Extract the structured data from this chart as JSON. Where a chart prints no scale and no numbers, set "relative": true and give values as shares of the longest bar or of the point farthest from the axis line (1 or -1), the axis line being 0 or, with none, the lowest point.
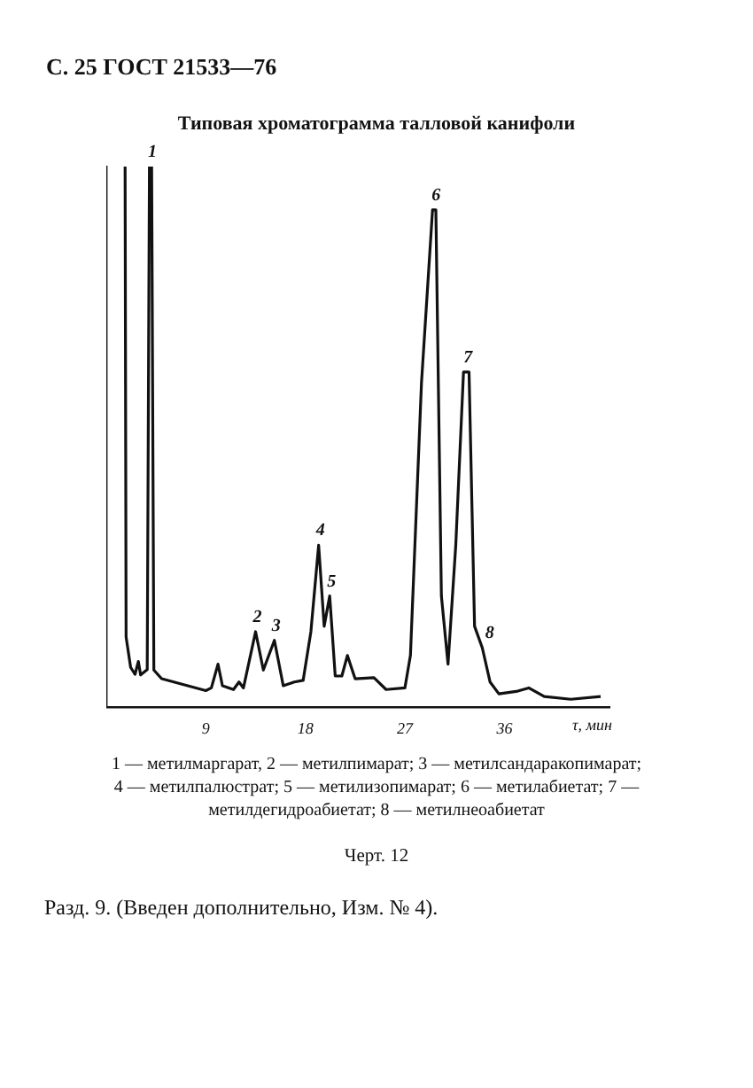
{
  "chart_data": {
    "type": "line",
    "relative": true,
    "title": "Типовая хроматограмма талловой канифоли",
    "xlabel": "τ, мин",
    "xlim": [
      0,
      45.5
    ],
    "xticks": [
      9,
      18,
      27,
      36
    ],
    "grid": false,
    "legend": false,
    "marker": "none",
    "line_style": "solid",
    "color": "#111111",
    "x": [
      1.7,
      1.79,
      2.2,
      2.6,
      2.9,
      3.1,
      3.7,
      3.9,
      4.1,
      4.3,
      5.0,
      7.0,
      9.0,
      9.5,
      10.1,
      10.5,
      11.5,
      12.0,
      12.4,
      13.5,
      14.2,
      15.2,
      16.0,
      17.0,
      17.8,
      18.5,
      19.2,
      19.7,
      20.2,
      20.7,
      21.3,
      21.8,
      22.5,
      24.2,
      25.3,
      27.0,
      27.5,
      28.5,
      29.5,
      29.8,
      30.3,
      30.9,
      31.6,
      32.3,
      32.8,
      33.3,
      34.0,
      34.7,
      35.5,
      37.2,
      38.2,
      39.6,
      42.0,
      44.7
    ],
    "values": [
      1,
      0.13,
      0.074,
      0.061,
      0.085,
      0.06,
      0.07,
      1,
      1,
      0.069,
      0.053,
      0.042,
      0.031,
      0.036,
      0.08,
      0.04,
      0.033,
      0.047,
      0.036,
      0.14,
      0.069,
      0.124,
      0.04,
      0.047,
      0.05,
      0.14,
      0.3,
      0.15,
      0.206,
      0.058,
      0.058,
      0.096,
      0.053,
      0.055,
      0.033,
      0.036,
      0.096,
      0.6,
      0.92,
      0.92,
      0.206,
      0.08,
      0.3,
      0.62,
      0.62,
      0.15,
      0.11,
      0.047,
      0.025,
      0.03,
      0.036,
      0.02,
      0.015,
      0.02
    ],
    "annotations": [
      "С. 25 ГОСТ 21533—76",
      {
        "text": "1",
        "x": 4.0,
        "y": 1
      },
      {
        "text": "2",
        "x": 13.5,
        "y": 0.14
      },
      {
        "text": "3",
        "x": 15.2,
        "y": 0.124
      },
      {
        "text": "4",
        "x": 19.2,
        "y": 0.3
      },
      {
        "text": "5",
        "x": 20.2,
        "y": 0.206
      },
      {
        "text": "6",
        "x": 29.65,
        "y": 0.92
      },
      {
        "text": "7",
        "x": 32.55,
        "y": 0.62
      },
      {
        "text": "8",
        "x": 34.5,
        "y": 0.11
      },
      "1 — метилмаргарат, 2 — метилпимарат; 3 — метилсандаракопимарат; 4 — метилпалюстрат; 5 — метилизопимарат; 6 — метилабиетат; 7 — метилдегидроабиетат; 8 — метилнеоабиетат",
      "Черт. 12",
      "Разд. 9. (Введен дополнительно, Изм. № 4)."
    ]
  }
}
